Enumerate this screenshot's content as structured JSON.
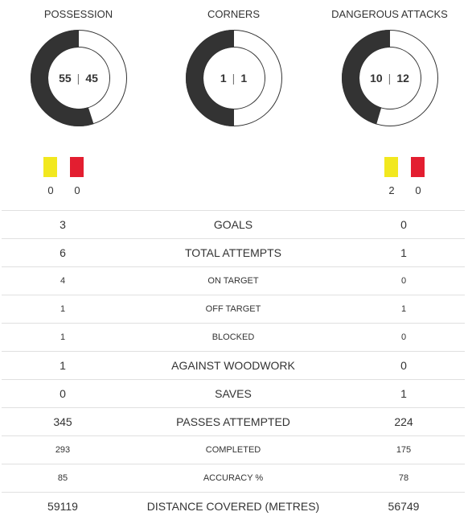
{
  "donuts": [
    {
      "title": "POSSESSION",
      "home": 55,
      "away": 45,
      "home_display": "55",
      "away_display": "45",
      "sep": "|"
    },
    {
      "title": "CORNERS",
      "home": 1,
      "away": 1,
      "home_display": "1",
      "away_display": "1",
      "sep": "|"
    },
    {
      "title": "DANGEROUS ATTACKS",
      "home": 10,
      "away": 12,
      "home_display": "10",
      "away_display": "12",
      "sep": "|"
    }
  ],
  "colors": {
    "home_share": "#333333",
    "away_share": "#ffffff",
    "ring_border": "#333333",
    "yellow_card": "#f2e81f",
    "red_card": "#e31e30",
    "divider": "#e0e0e0"
  },
  "cards": {
    "home": {
      "yellow": "0",
      "red": "0"
    },
    "away": {
      "yellow": "2",
      "red": "0"
    }
  },
  "stats": [
    {
      "label": "GOALS",
      "home": "3",
      "away": "0",
      "size": "big"
    },
    {
      "label": "TOTAL ATTEMPTS",
      "home": "6",
      "away": "1",
      "size": "big"
    },
    {
      "label": "ON TARGET",
      "home": "4",
      "away": "0",
      "size": "small"
    },
    {
      "label": "OFF TARGET",
      "home": "1",
      "away": "1",
      "size": "small"
    },
    {
      "label": "BLOCKED",
      "home": "1",
      "away": "0",
      "size": "small"
    },
    {
      "label": "AGAINST WOODWORK",
      "home": "1",
      "away": "0",
      "size": "big"
    },
    {
      "label": "SAVES",
      "home": "0",
      "away": "1",
      "size": "big"
    },
    {
      "label": "PASSES ATTEMPTED",
      "home": "345",
      "away": "224",
      "size": "big"
    },
    {
      "label": "COMPLETED",
      "home": "293",
      "away": "175",
      "size": "small"
    },
    {
      "label": "ACCURACY %",
      "home": "85",
      "away": "78",
      "size": "small"
    },
    {
      "label": "DISTANCE COVERED (METRES)",
      "home": "59119",
      "away": "56749",
      "size": "big"
    }
  ]
}
